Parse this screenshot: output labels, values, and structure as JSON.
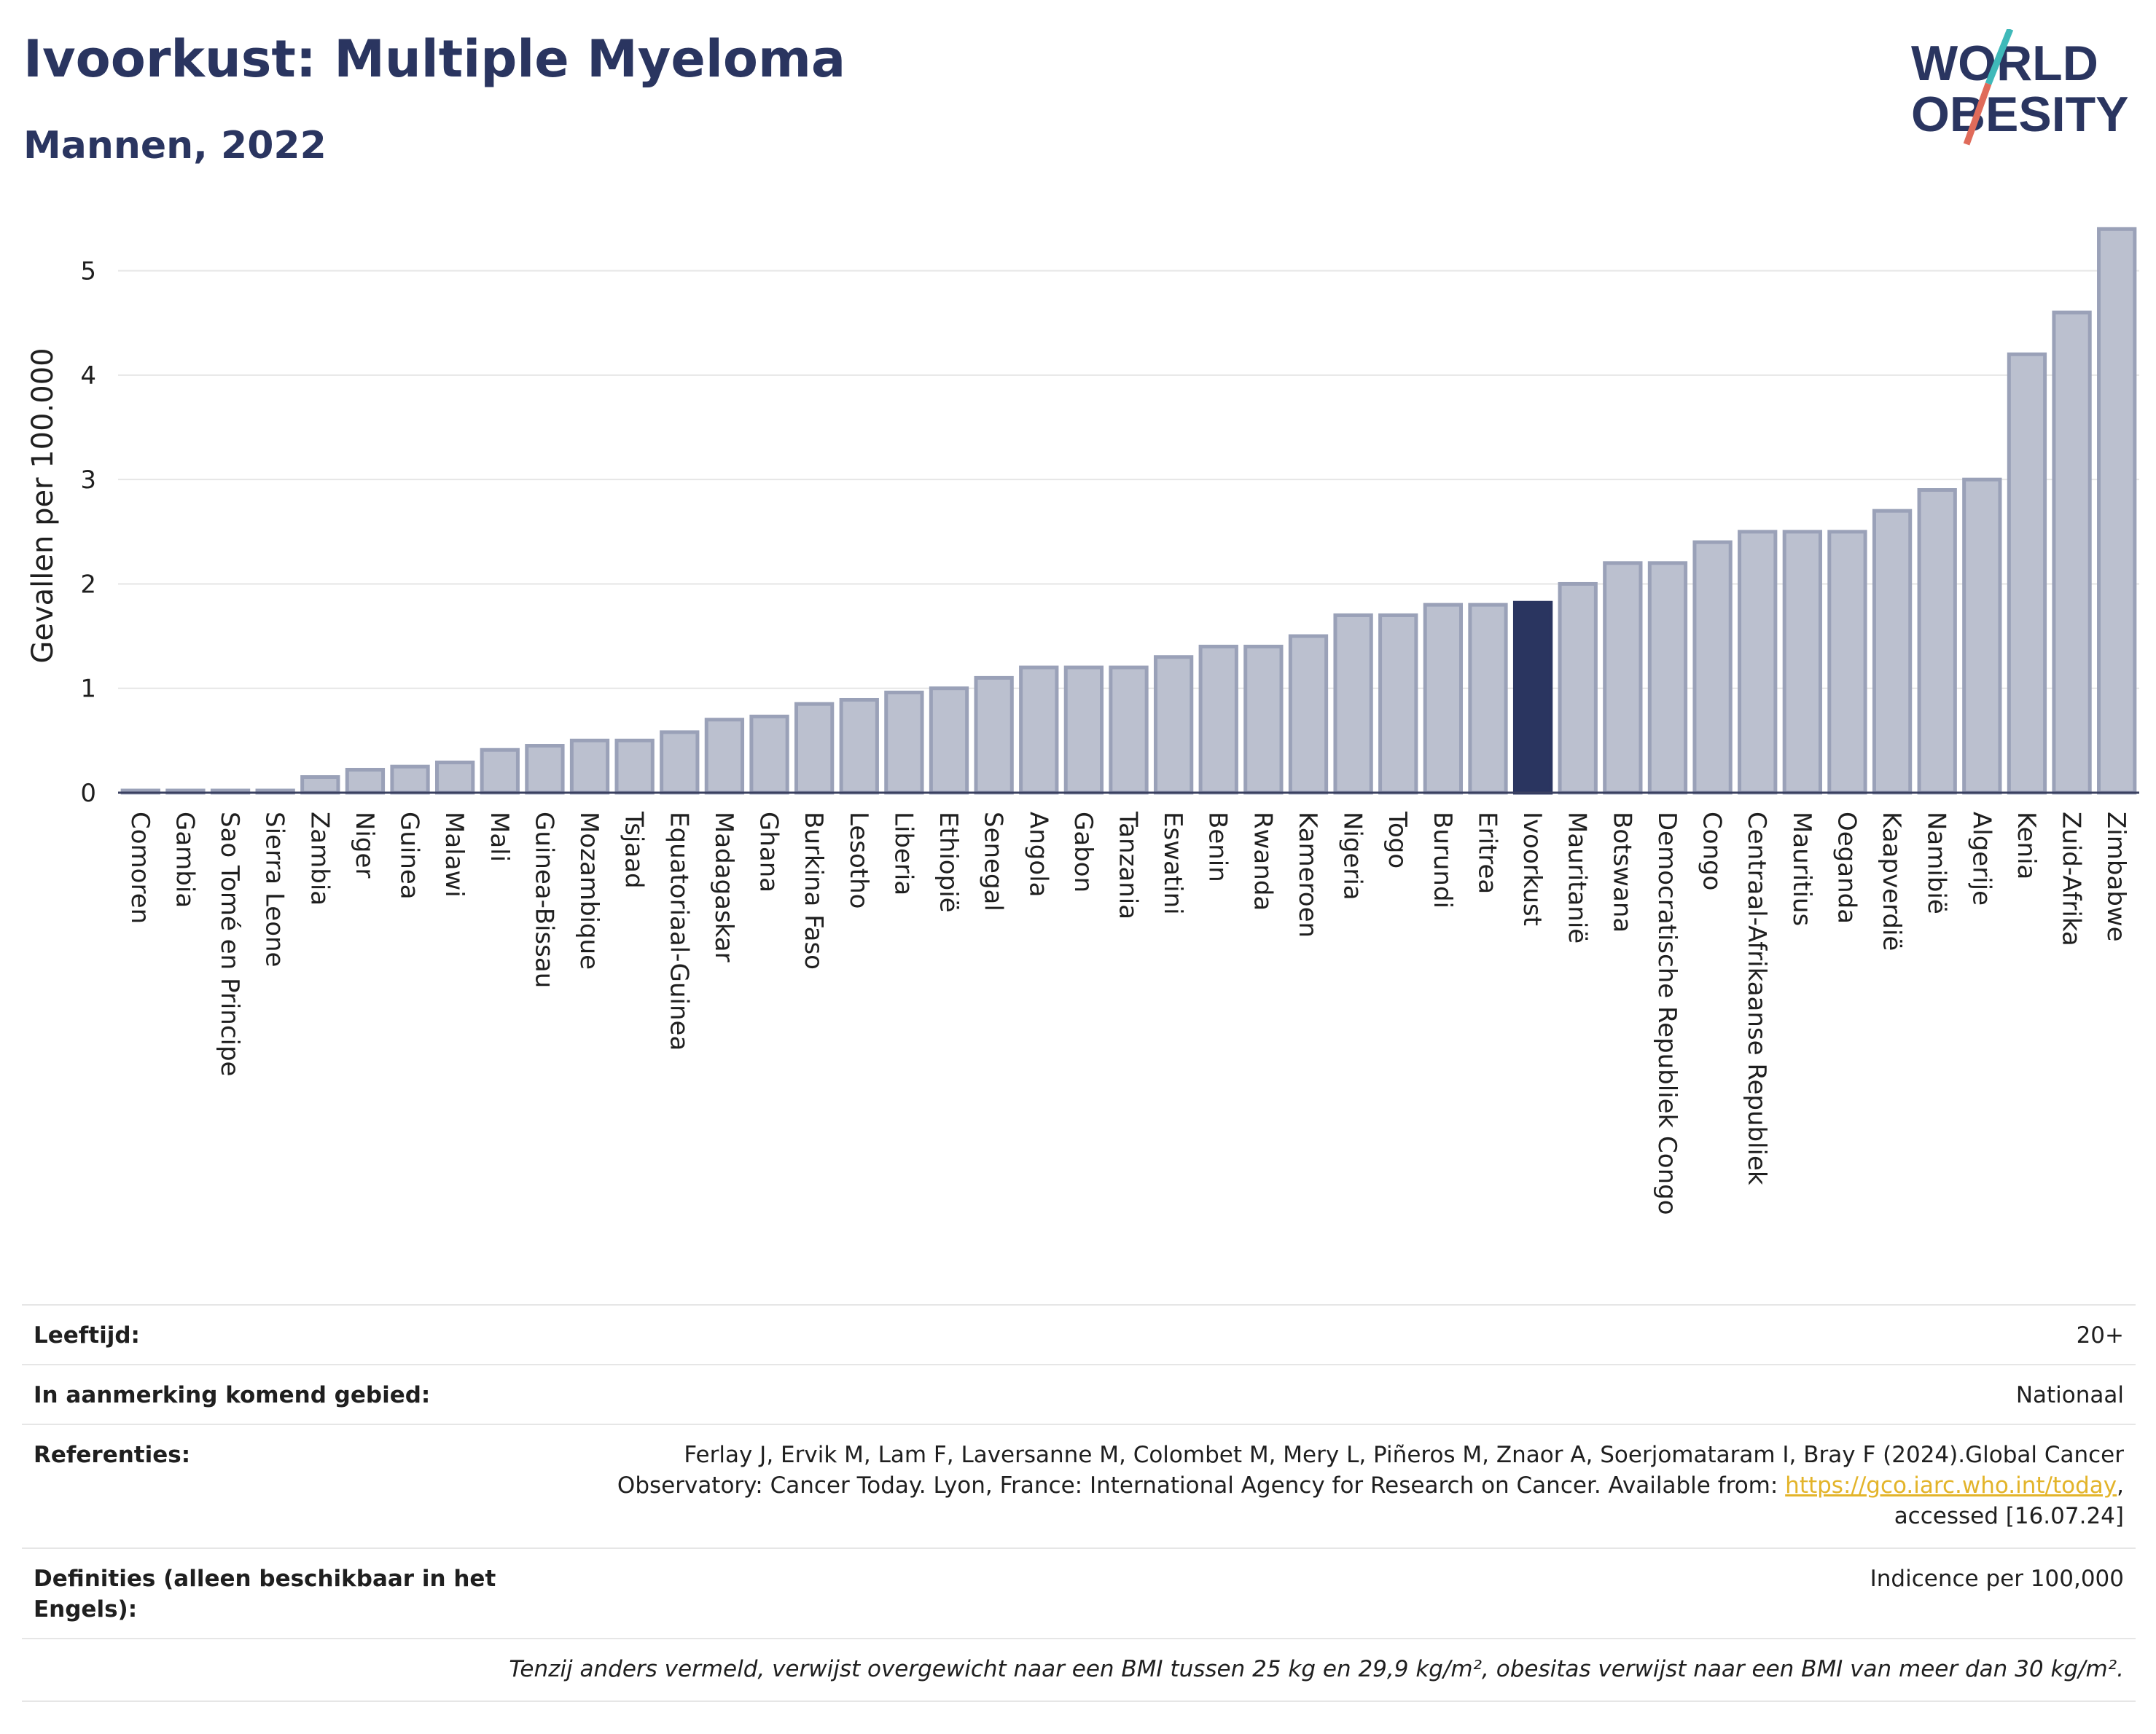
{
  "header": {
    "title": "Ivoorkust: Multiple Myeloma",
    "subtitle": "Mannen, 2022",
    "logo_line1": "WORLD",
    "logo_line2": "OBESITY"
  },
  "colors": {
    "title": "#2a3560",
    "bar": "#bbc0cf",
    "bar_border": "#9aa1b8",
    "highlight": "#2a3560",
    "grid": "#e6e6e6",
    "link": "#e3b42a",
    "logo_teal": "#3fb9b9",
    "logo_red": "#e06b5a"
  },
  "chart_data": {
    "type": "bar",
    "ylabel": "Gevallen per 100.000",
    "xlabel": "",
    "ylim": [
      0,
      5.5
    ],
    "yticks": [
      0,
      1,
      2,
      3,
      4,
      5
    ],
    "grid": true,
    "highlight": "Ivoorkust",
    "categories": [
      "Comoren",
      "Gambia",
      "Sao Tomé en Principe",
      "Sierra Leone",
      "Zambia",
      "Niger",
      "Guinea",
      "Malawi",
      "Mali",
      "Guinea-Bissau",
      "Mozambique",
      "Tsjaad",
      "Equatoriaal-Guinea",
      "Madagaskar",
      "Ghana",
      "Burkina Faso",
      "Lesotho",
      "Liberia",
      "Ethiopië",
      "Senegal",
      "Angola",
      "Gabon",
      "Tanzania",
      "Eswatini",
      "Benin",
      "Rwanda",
      "Kameroen",
      "Nigeria",
      "Togo",
      "Burundi",
      "Eritrea",
      "Ivoorkust",
      "Mauritanië",
      "Botswana",
      "Democratische Republiek Congo",
      "Congo",
      "Centraal-Afrikaanse Republiek",
      "Mauritius",
      "Oeganda",
      "Kaapverdië",
      "Namibië",
      "Algerije",
      "Kenia",
      "Zuid-Afrika",
      "Zimbabwe"
    ],
    "values": [
      0.02,
      0.02,
      0.02,
      0.02,
      0.15,
      0.22,
      0.25,
      0.29,
      0.41,
      0.45,
      0.5,
      0.5,
      0.58,
      0.7,
      0.73,
      0.85,
      0.89,
      0.96,
      1.0,
      1.1,
      1.2,
      1.2,
      1.2,
      1.3,
      1.4,
      1.4,
      1.5,
      1.7,
      1.7,
      1.8,
      1.8,
      1.82,
      2.0,
      2.2,
      2.2,
      2.4,
      2.5,
      2.5,
      2.5,
      2.7,
      2.9,
      3.0,
      4.2,
      4.6,
      5.4
    ]
  },
  "meta": {
    "age_label": "Leeftijd:",
    "age_value": "20+",
    "area_label": "In aanmerking komend gebied:",
    "area_value": "Nationaal",
    "ref_label": "Referenties:",
    "ref_text_1": "Ferlay J, Ervik M, Lam F, Laversanne M, Colombet M, Mery L, Piñeros M, Znaor A, Soerjomataram I, Bray F (2024).Global Cancer",
    "ref_text_2": "Observatory: Cancer Today. Lyon, France: International Agency for Research on Cancer. Available from: ",
    "ref_link": "https://gco.iarc.who.int/today",
    "ref_text_3": "accessed [16.07.24]",
    "def_label_1": "Definities (alleen beschikbaar in het",
    "def_label_2": "Engels):",
    "def_value": "Indicence per 100,000",
    "note": "Tenzij anders vermeld, verwijst overgewicht naar een BMI tussen 25 kg en 29,9 kg/m², obesitas verwijst naar een BMI van meer dan 30 kg/m²."
  }
}
